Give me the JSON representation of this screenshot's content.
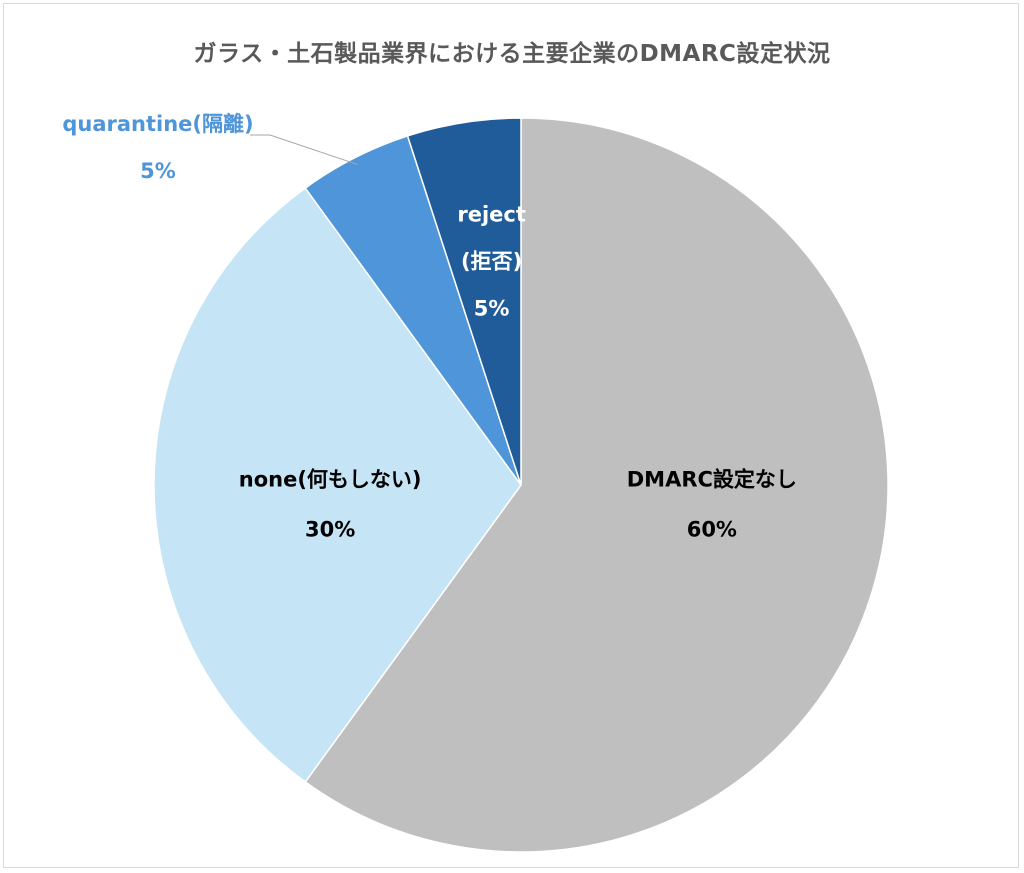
{
  "chart_data": {
    "type": "pie",
    "title": "ガラス・土石製品業界における主要企業のDMARC設定状況",
    "start_angle_deg": 0,
    "direction": "clockwise",
    "slices": [
      {
        "label": "DMARC設定なし",
        "value": 60,
        "value_label": "60%",
        "color": "#bfbfbf",
        "label_color": "#000000"
      },
      {
        "label": "none(何もしない)",
        "value": 30,
        "value_label": "30%",
        "color": "#c5e4f5",
        "label_color": "#000000"
      },
      {
        "label": "quarantine(隔離)",
        "value": 5,
        "value_label": "5%",
        "color": "#4f95d9",
        "label_color": "#4f95d9"
      },
      {
        "label": "reject",
        "label_line2": "(拒否)",
        "value": 5,
        "value_label": "5%",
        "color": "#1f5c99",
        "label_color": "#ffffff"
      }
    ]
  }
}
